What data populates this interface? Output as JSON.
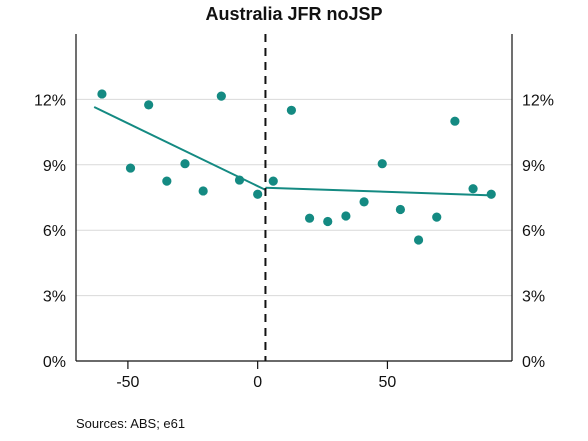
{
  "chart_data": {
    "type": "scatter",
    "title": "Australia JFR noJSP",
    "xlabel": "",
    "ylabel": "",
    "source": "Sources: ABS; e61",
    "xlim": [
      -70,
      98
    ],
    "ylim": [
      0,
      0.15
    ],
    "x_ticks": [
      {
        "value": -50,
        "label": "-50"
      },
      {
        "value": 0,
        "label": "0"
      },
      {
        "value": 50,
        "label": "50"
      }
    ],
    "y_ticks": [
      {
        "value": 0,
        "label": "0%"
      },
      {
        "value": 0.03,
        "label": "3%"
      },
      {
        "value": 0.06,
        "label": "6%"
      },
      {
        "value": 0.09,
        "label": "9%"
      },
      {
        "value": 0.12,
        "label": "12%"
      }
    ],
    "grid": true,
    "cutoff_x": 3,
    "points": [
      {
        "x": -60,
        "y": 0.1225
      },
      {
        "x": -49,
        "y": 0.0885
      },
      {
        "x": -42,
        "y": 0.1175
      },
      {
        "x": -35,
        "y": 0.0825
      },
      {
        "x": -28,
        "y": 0.0905
      },
      {
        "x": -21,
        "y": 0.078
      },
      {
        "x": -14,
        "y": 0.1215
      },
      {
        "x": -7,
        "y": 0.083
      },
      {
        "x": 0,
        "y": 0.0765
      },
      {
        "x": 6,
        "y": 0.0825
      },
      {
        "x": 13,
        "y": 0.115
      },
      {
        "x": 20,
        "y": 0.0655
      },
      {
        "x": 27,
        "y": 0.064
      },
      {
        "x": 34,
        "y": 0.0665
      },
      {
        "x": 41,
        "y": 0.073
      },
      {
        "x": 48,
        "y": 0.0905
      },
      {
        "x": 55,
        "y": 0.0695
      },
      {
        "x": 62,
        "y": 0.0555
      },
      {
        "x": 69,
        "y": 0.066
      },
      {
        "x": 76,
        "y": 0.11
      },
      {
        "x": 83,
        "y": 0.079
      },
      {
        "x": 90,
        "y": 0.0765
      }
    ],
    "trend_lines": [
      {
        "segment": "pre",
        "points": [
          {
            "x": -63,
            "y": 0.1165
          },
          {
            "x": 3,
            "y": 0.0785
          }
        ]
      },
      {
        "segment": "post",
        "points": [
          {
            "x": 3,
            "y": 0.0795
          },
          {
            "x": 90,
            "y": 0.076
          }
        ]
      }
    ],
    "colors": {
      "points": "#148a82",
      "trend": "#148a82",
      "axis": "#111111",
      "grid": "#d9d9d9"
    }
  }
}
